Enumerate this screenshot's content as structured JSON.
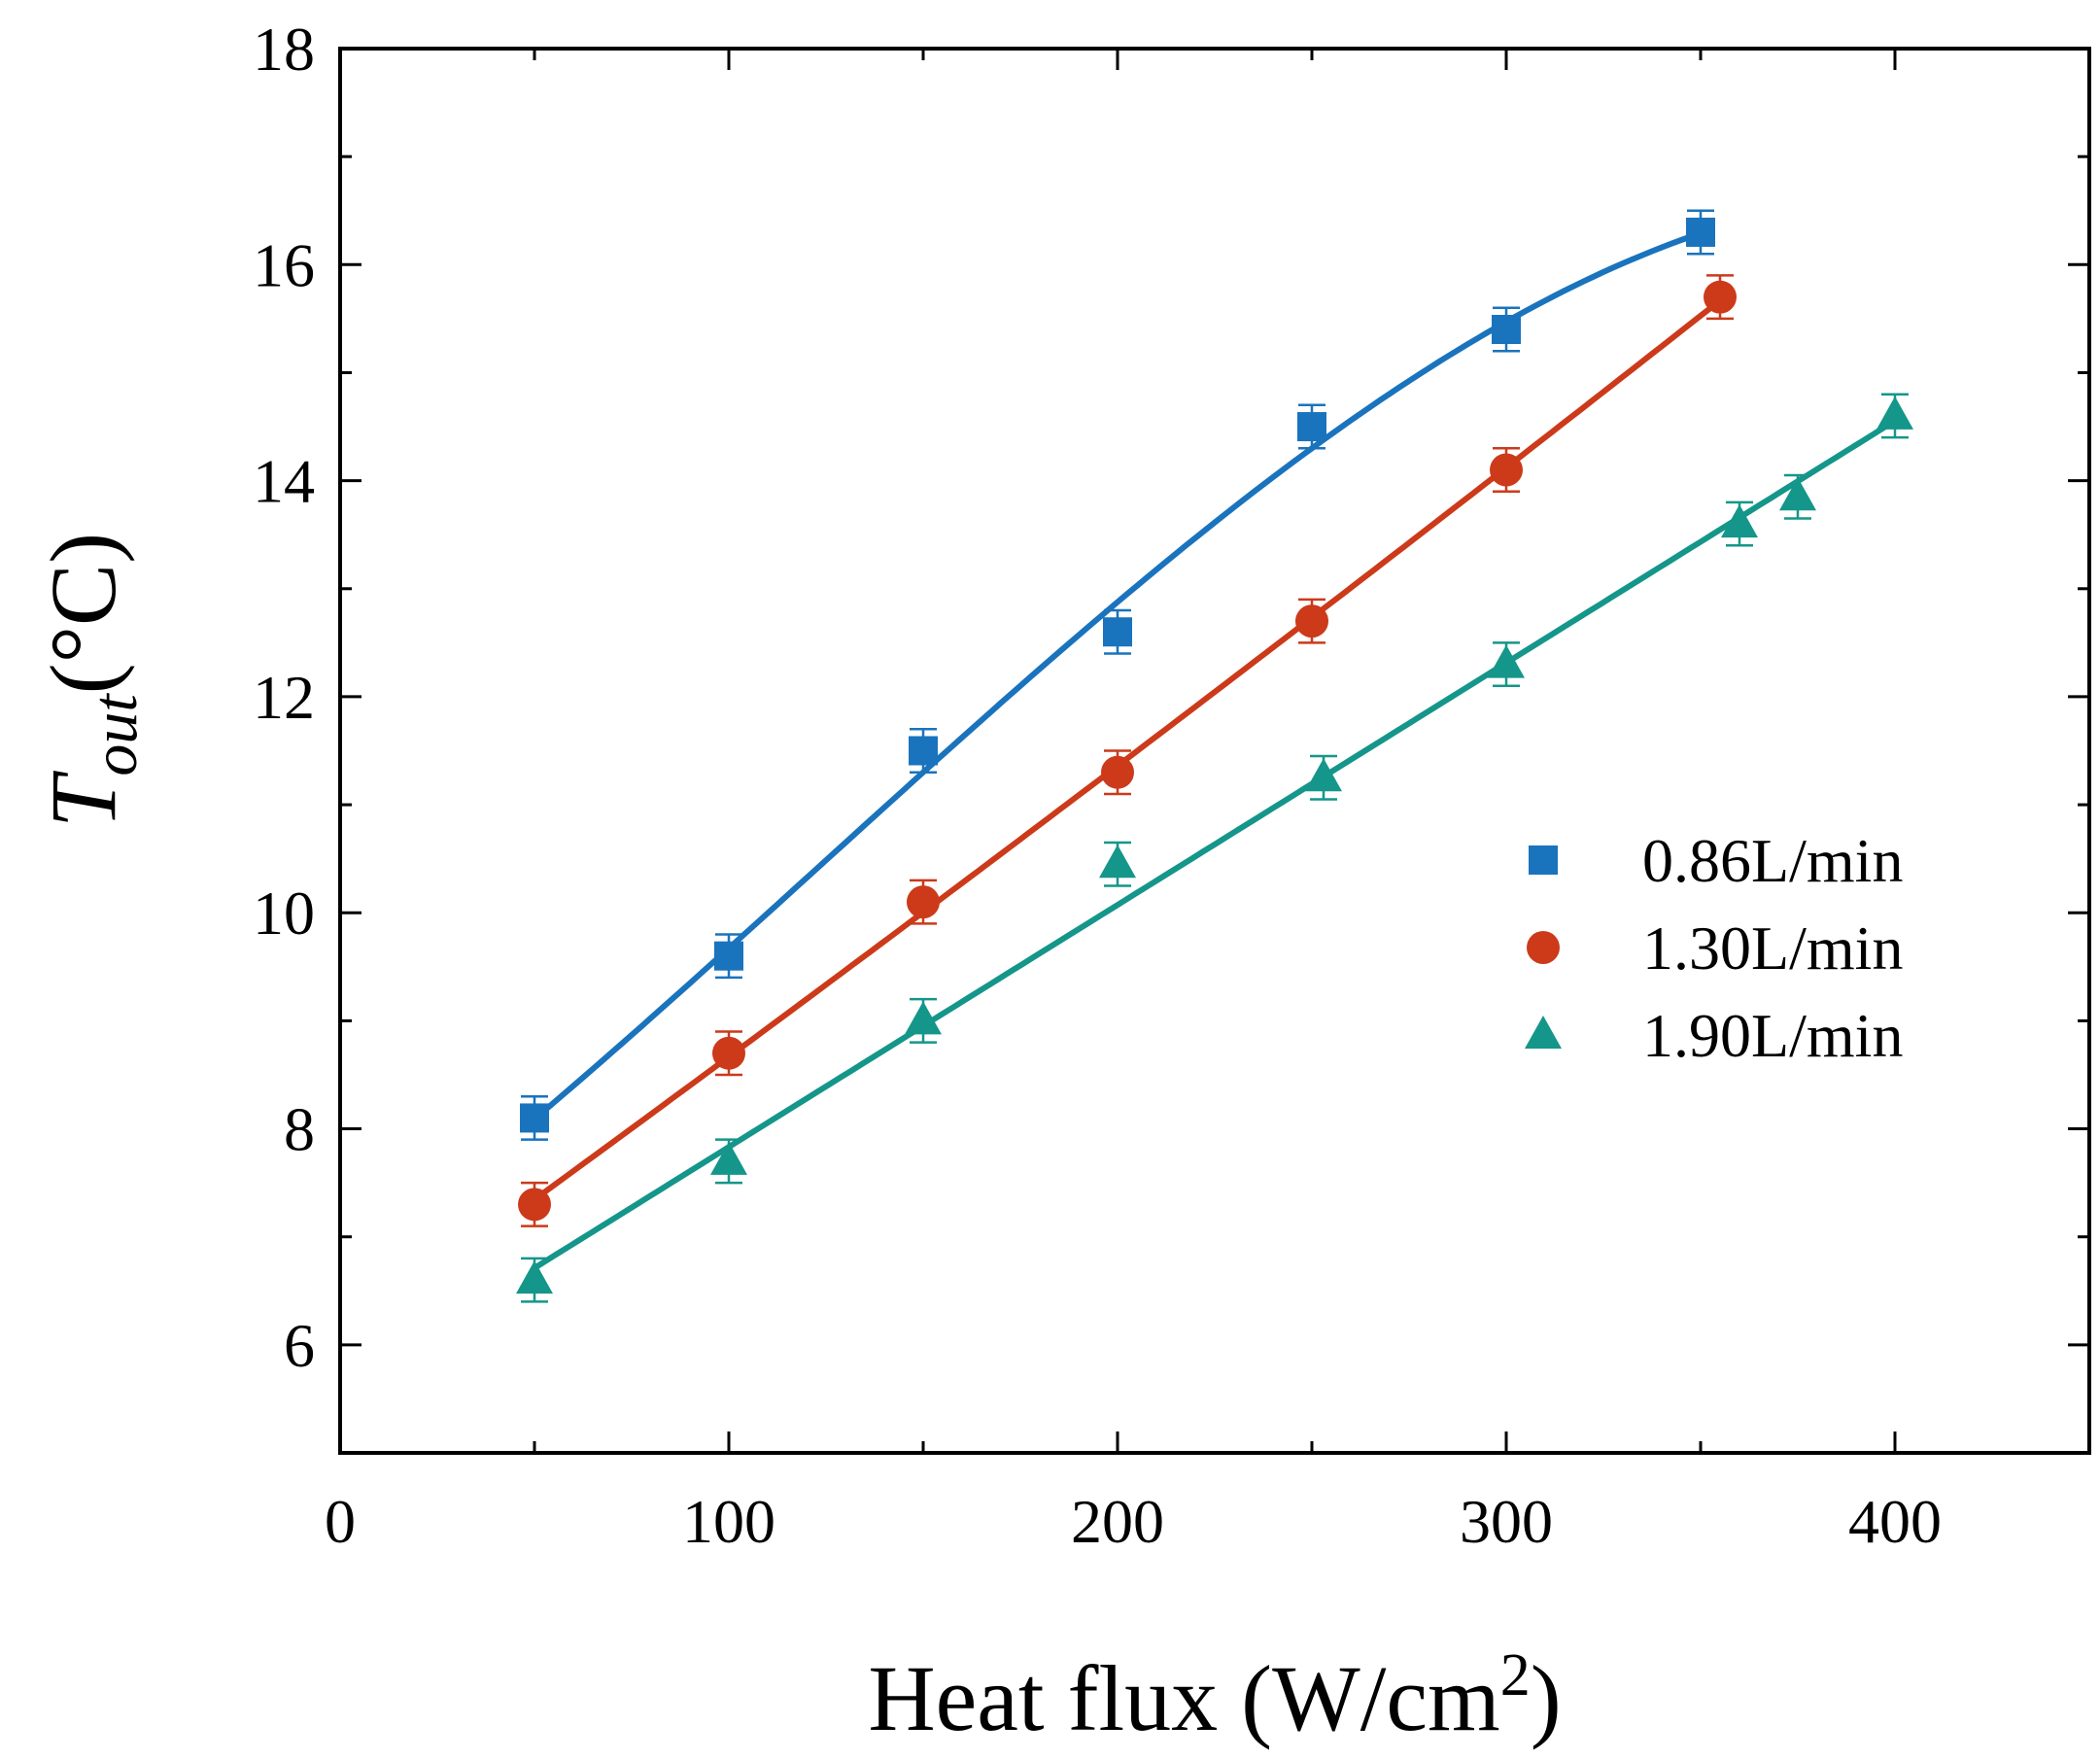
{
  "chart_data": {
    "type": "scatter",
    "title": "",
    "xlabel": "Heat flux (W/cm2)",
    "xlabel_parts": {
      "main": "Heat flux (W/cm",
      "sup": "2",
      "end": ")"
    },
    "ylabel": "Tout(°C)",
    "ylabel_parts": {
      "var": "T",
      "sub": "out",
      "unit": "(°C)"
    },
    "xlim": [
      0,
      450
    ],
    "ylim": [
      5,
      18
    ],
    "xticks": [
      0,
      100,
      200,
      300,
      400
    ],
    "xtick_labels": [
      "0",
      "100",
      "200",
      "300",
      "400"
    ],
    "xminor": [
      50,
      150,
      250,
      350,
      450
    ],
    "yticks": [
      6,
      8,
      10,
      12,
      14,
      16,
      18
    ],
    "ytick_labels": [
      "6",
      "8",
      "10",
      "12",
      "14",
      "16",
      "18"
    ],
    "yminor": [
      5,
      7,
      9,
      11,
      13,
      15,
      17
    ],
    "grid": false,
    "legend_position": "right-middle",
    "error_bar": 0.2,
    "series": [
      {
        "name": "0.86L/min",
        "marker": "square",
        "color": "#1a73bd",
        "x": [
          50,
          100,
          150,
          200,
          250,
          300,
          350
        ],
        "y": [
          8.1,
          9.6,
          11.5,
          12.6,
          14.5,
          15.4,
          16.3
        ],
        "fit": "poly3"
      },
      {
        "name": "1.30L/min",
        "marker": "circle",
        "color": "#cc3a1a",
        "x": [
          50,
          100,
          150,
          200,
          250,
          300,
          355
        ],
        "y": [
          7.3,
          8.7,
          10.1,
          11.3,
          12.7,
          14.1,
          15.7
        ],
        "fit": "poly2"
      },
      {
        "name": "1.90L/min",
        "marker": "triangle",
        "color": "#14968a",
        "x": [
          50,
          100,
          150,
          200,
          253,
          300,
          360,
          375,
          400
        ],
        "y": [
          6.6,
          7.7,
          9.0,
          10.45,
          11.25,
          12.3,
          13.6,
          13.85,
          14.6
        ],
        "fit": "poly1"
      }
    ]
  }
}
